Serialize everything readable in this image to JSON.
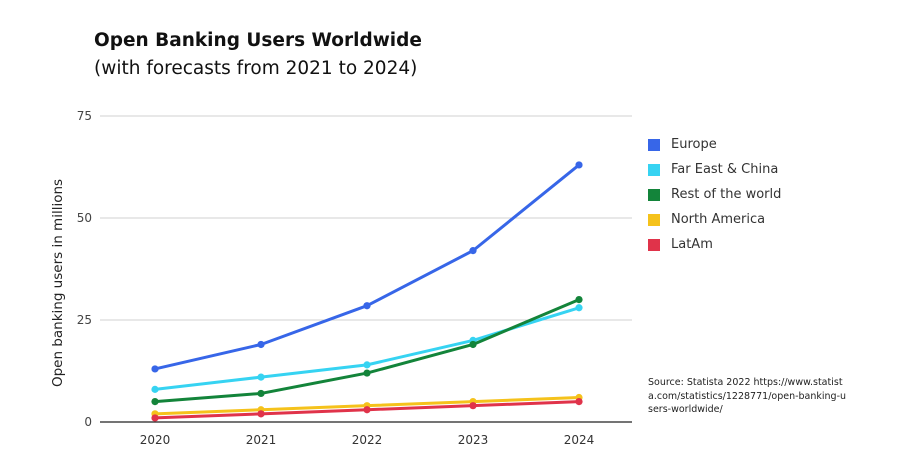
{
  "chart_data": {
    "type": "line",
    "title": "Open Banking Users Worldwide",
    "subtitle": "(with forecasts from 2021 to 2024)",
    "xlabel": "",
    "ylabel": "Open banking users in millions",
    "x": [
      "2020",
      "2021",
      "2022",
      "2023",
      "2024"
    ],
    "ylim": [
      0,
      75
    ],
    "yticks": [
      "0",
      "25",
      "50",
      "75"
    ],
    "grid": true,
    "legend_position": "right",
    "series": [
      {
        "name": "Europe",
        "color": "#3766e8",
        "values": [
          13,
          19,
          28.5,
          42,
          63
        ]
      },
      {
        "name": "Far East & China",
        "color": "#36d3f2",
        "values": [
          8,
          11,
          14,
          20,
          28
        ]
      },
      {
        "name": "Rest of the world",
        "color": "#13843a",
        "values": [
          5,
          7,
          12,
          19,
          30
        ]
      },
      {
        "name": "North America",
        "color": "#f5c21b",
        "values": [
          2,
          3,
          4,
          5,
          6
        ]
      },
      {
        "name": "LatAm",
        "color": "#e0334a",
        "values": [
          1,
          2,
          3,
          4,
          5
        ]
      }
    ],
    "source": "Source: Statista 2022 https://www.statista.com/statistics/1228771/open-banking-users-worldwide/"
  }
}
